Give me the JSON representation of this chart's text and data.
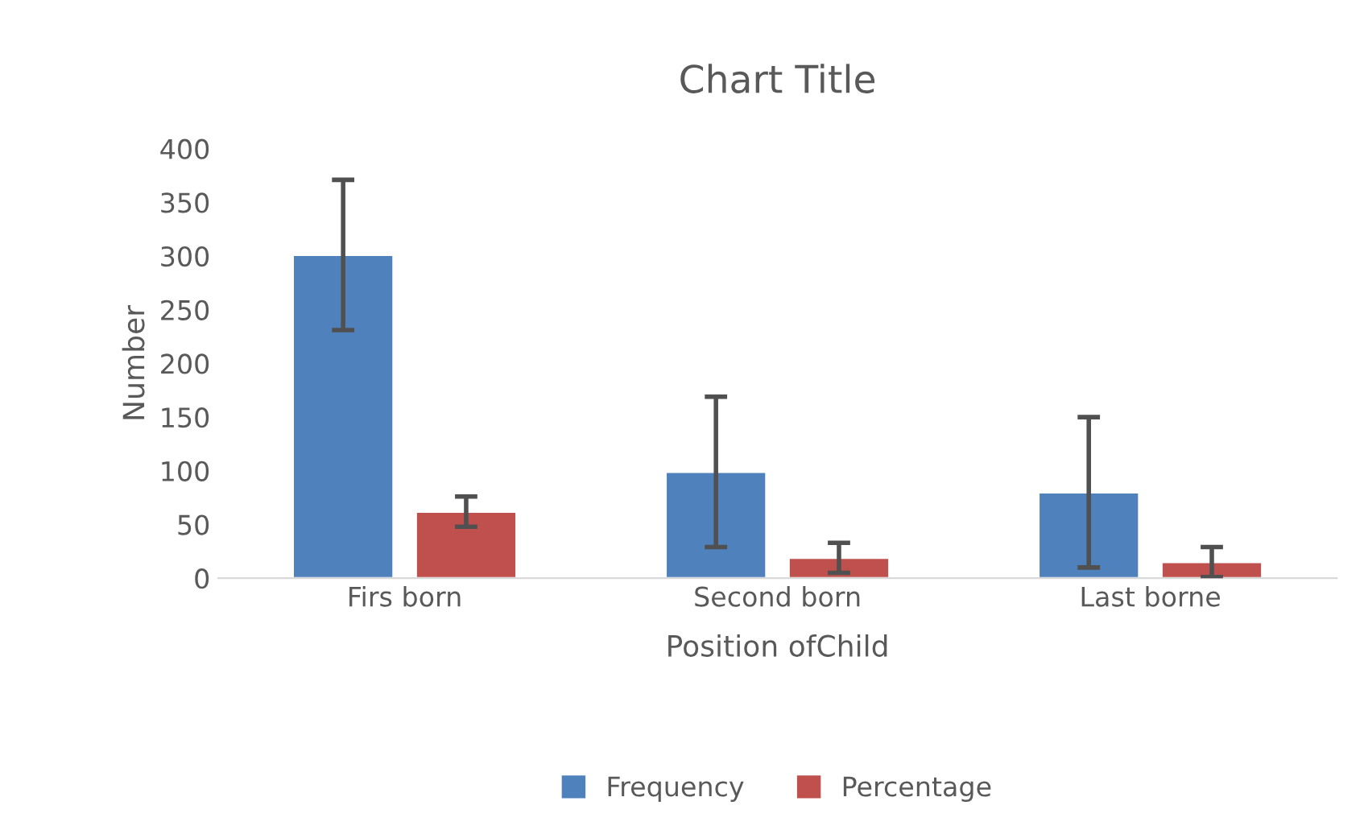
{
  "chart_data": {
    "type": "bar",
    "title": "Chart Title",
    "xlabel": "Position ofChild",
    "ylabel": "Number",
    "categories": [
      "Firs born",
      "Second born",
      "Last borne"
    ],
    "series": [
      {
        "name": "Frequency",
        "color": "#4f81bd",
        "values": [
          301,
          99,
          80
        ],
        "errors": [
          70,
          70,
          70
        ]
      },
      {
        "name": "Percentage",
        "color": "#c0504d",
        "values": [
          62,
          19,
          15
        ],
        "errors": [
          14,
          14,
          14
        ]
      }
    ],
    "ylim": [
      0,
      400
    ],
    "yticks": [
      0,
      50,
      100,
      150,
      200,
      250,
      300,
      350,
      400
    ],
    "grid": false,
    "legend": "bottom"
  }
}
